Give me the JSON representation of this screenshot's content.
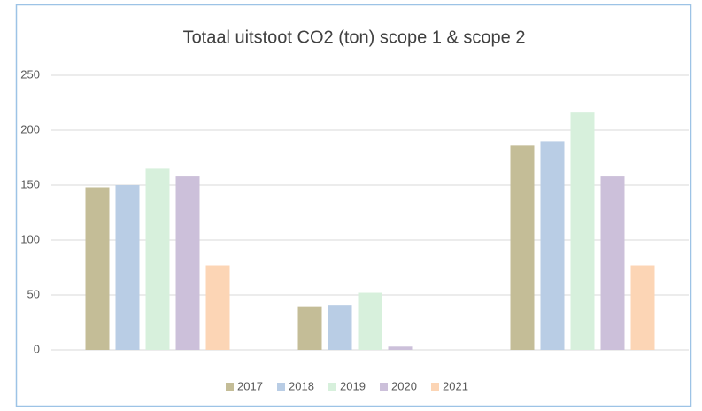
{
  "chart_data": {
    "type": "bar",
    "title": "Totaal uitstoot CO2 (ton) scope 1 & scope 2",
    "categories": [
      null,
      null,
      null
    ],
    "series": [
      {
        "name": "2017",
        "color": "#c4bd97",
        "values": [
          148,
          39,
          186
        ]
      },
      {
        "name": "2018",
        "color": "#b9cde5",
        "values": [
          150,
          41,
          190
        ]
      },
      {
        "name": "2019",
        "color": "#d7f0dc",
        "values": [
          165,
          52,
          216
        ]
      },
      {
        "name": "2020",
        "color": "#ccc0da",
        "values": [
          158,
          3,
          158
        ]
      },
      {
        "name": "2021",
        "color": "#fcd5b5",
        "values": [
          77,
          0,
          77
        ]
      }
    ],
    "ylim": [
      0,
      250
    ],
    "yticks": [
      0,
      50,
      100,
      150,
      200,
      250
    ],
    "grid": true,
    "legend": "bottom"
  }
}
